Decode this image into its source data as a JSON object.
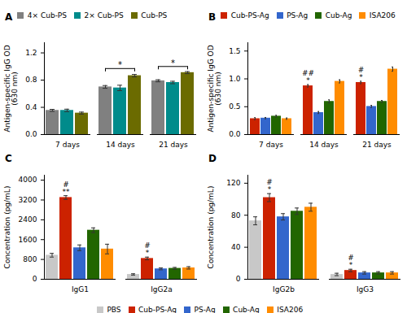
{
  "chart_data": [
    {
      "type": "bar",
      "title": "A",
      "ylabel": "Antigen-specific IgG OD\n(630 nm)",
      "categories": [
        "7 days",
        "14 days",
        "21 days"
      ],
      "series": [
        {
          "name": "4× Cub-PS",
          "color": "#808080",
          "values": [
            0.355,
            0.7,
            0.79
          ],
          "errors": [
            0.015,
            0.02,
            0.015
          ]
        },
        {
          "name": "2× Cub-PS",
          "color": "#008B8B",
          "values": [
            0.355,
            0.685,
            0.765
          ],
          "errors": [
            0.018,
            0.04,
            0.018
          ]
        },
        {
          "name": "Cub-PS",
          "color": "#6B6B00",
          "values": [
            0.315,
            0.865,
            0.91
          ],
          "errors": [
            0.015,
            0.018,
            0.015
          ]
        }
      ],
      "ylim": [
        0,
        1.35
      ],
      "yticks": [
        {
          "value": 0,
          "label": "0.0"
        },
        0.4,
        0.8,
        1.2
      ],
      "grid": false,
      "legend": "top",
      "annotations": [
        {
          "text": "*",
          "category": "14 days",
          "from": "4× Cub-PS",
          "to": "Cub-PS",
          "y": 0.97
        },
        {
          "text": "*",
          "category": "21 days",
          "from": "4× Cub-PS",
          "to": "Cub-PS",
          "y": 1.0
        }
      ]
    },
    {
      "type": "bar",
      "title": "B",
      "ylabel": "Antigen-specific IgG OD\n(630 nm)",
      "categories": [
        "7 days",
        "14 days",
        "21 days"
      ],
      "series": [
        {
          "name": "Cub-PS-Ag",
          "color": "#CC2200",
          "values": [
            0.285,
            0.875,
            0.935
          ],
          "errors": [
            0.018,
            0.022,
            0.022
          ]
        },
        {
          "name": "PS-Ag",
          "color": "#3366CC",
          "values": [
            0.295,
            0.395,
            0.505
          ],
          "errors": [
            0.012,
            0.018,
            0.018
          ]
        },
        {
          "name": "Cub-Ag",
          "color": "#226600",
          "values": [
            0.33,
            0.595,
            0.595
          ],
          "errors": [
            0.015,
            0.028,
            0.018
          ]
        },
        {
          "name": "ISA206",
          "color": "#FF8C00",
          "values": [
            0.285,
            0.955,
            1.175
          ],
          "errors": [
            0.012,
            0.028,
            0.038
          ]
        }
      ],
      "ylim": [
        0,
        1.65
      ],
      "yticks": [
        {
          "value": 0,
          "label": "0.0"
        },
        0.5,
        {
          "value": 1,
          "label": "1.0"
        },
        1.5
      ],
      "grid": false,
      "legend": "top",
      "annotations": [
        {
          "text": "*",
          "category": "14 days",
          "series": "Cub-PS-Ag"
        },
        {
          "text": "##",
          "category": "14 days",
          "series": "Cub-PS-Ag"
        },
        {
          "text": "*",
          "category": "21 days",
          "series": "Cub-PS-Ag"
        },
        {
          "text": "#",
          "category": "21 days",
          "series": "Cub-PS-Ag"
        }
      ]
    },
    {
      "type": "bar",
      "title": "C",
      "ylabel": "Concentration (pg/mL)",
      "categories": [
        "IgG1",
        "IgG2a"
      ],
      "series": [
        {
          "name": "PBS",
          "color": "#C8C8C8",
          "values": [
            970,
            195
          ],
          "errors": [
            75,
            28
          ]
        },
        {
          "name": "Cub-PS-Ag",
          "color": "#CC2200",
          "values": [
            3300,
            840
          ],
          "errors": [
            75,
            55
          ]
        },
        {
          "name": "PS-Ag",
          "color": "#3366CC",
          "values": [
            1270,
            420
          ],
          "errors": [
            115,
            38
          ]
        },
        {
          "name": "Cub-Ag",
          "color": "#226600",
          "values": [
            1980,
            440
          ],
          "errors": [
            95,
            38
          ]
        },
        {
          "name": "ISA206",
          "color": "#FF8C00",
          "values": [
            1220,
            460
          ],
          "errors": [
            195,
            48
          ]
        }
      ],
      "ylim": [
        0,
        4200
      ],
      "yticks": [
        0,
        800,
        1600,
        2400,
        3200,
        4000
      ],
      "grid": false,
      "legend": "bottom",
      "annotations": [
        {
          "text": "**",
          "category": "IgG1",
          "series": "Cub-PS-Ag"
        },
        {
          "text": "#",
          "category": "IgG1",
          "series": "Cub-PS-Ag"
        },
        {
          "text": "*",
          "category": "IgG2a",
          "series": "Cub-PS-Ag"
        },
        {
          "text": "#",
          "category": "IgG2a",
          "series": "Cub-PS-Ag"
        }
      ]
    },
    {
      "type": "bar",
      "title": "D",
      "ylabel": "Concentration (pg/mL)",
      "categories": [
        "IgG2b",
        "IgG3"
      ],
      "series": [
        {
          "name": "PBS",
          "color": "#C8C8C8",
          "values": [
            73,
            6
          ],
          "errors": [
            5,
            1.5
          ]
        },
        {
          "name": "Cub-PS-Ag",
          "color": "#CC2200",
          "values": [
            102,
            11
          ],
          "errors": [
            5,
            1.5
          ]
        },
        {
          "name": "PS-Ag",
          "color": "#3366CC",
          "values": [
            78,
            8
          ],
          "errors": [
            4,
            1.5
          ]
        },
        {
          "name": "Cub-Ag",
          "color": "#226600",
          "values": [
            85,
            8
          ],
          "errors": [
            4,
            1.5
          ]
        },
        {
          "name": "ISA206",
          "color": "#FF8C00",
          "values": [
            90,
            8
          ],
          "errors": [
            5,
            1.5
          ]
        }
      ],
      "ylim": [
        0,
        130
      ],
      "yticks": [
        0,
        40,
        80,
        120
      ],
      "grid": false,
      "legend": "bottom",
      "annotations": [
        {
          "text": "*",
          "category": "IgG2b",
          "series": "Cub-PS-Ag"
        },
        {
          "text": "#",
          "category": "IgG2b",
          "series": "Cub-PS-Ag"
        },
        {
          "text": "*",
          "category": "IgG3",
          "series": "Cub-PS-Ag"
        },
        {
          "text": "#",
          "category": "IgG3",
          "series": "Cub-PS-Ag"
        }
      ]
    }
  ]
}
